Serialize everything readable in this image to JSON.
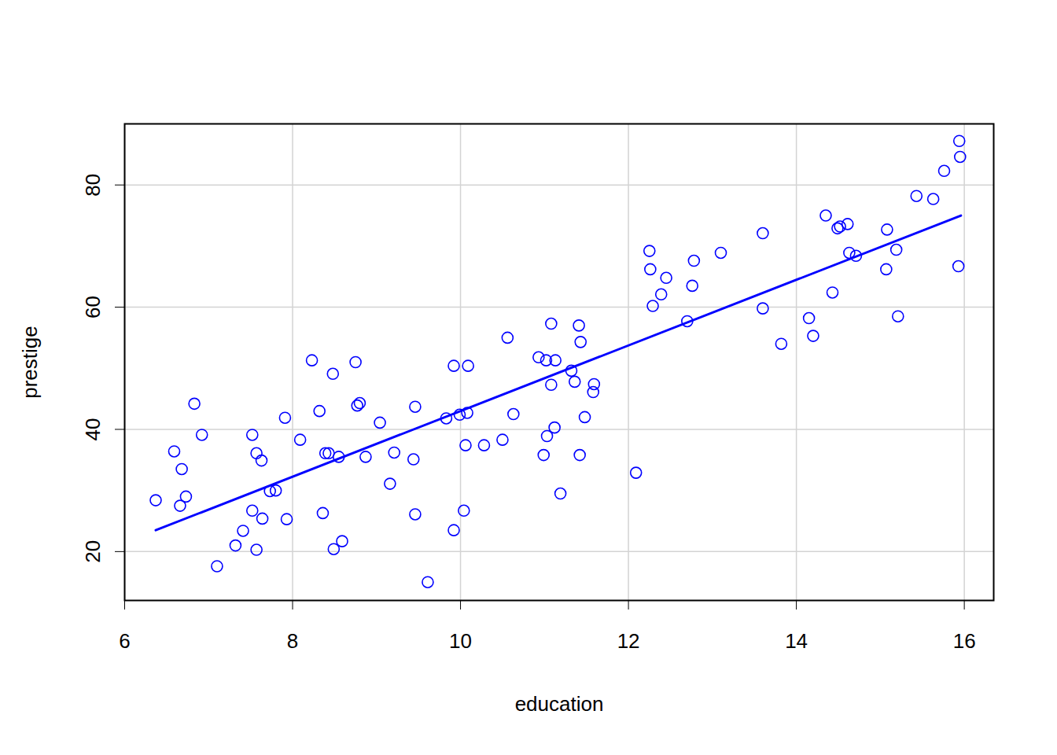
{
  "chart_data": {
    "type": "scatter",
    "x_label": "education",
    "y_label": "prestige",
    "xlim": [
      6,
      16.35
    ],
    "ylim": [
      12,
      90
    ],
    "xticks": [
      6,
      8,
      10,
      12,
      14,
      16
    ],
    "yticks": [
      20,
      40,
      60,
      80
    ],
    "grid": true,
    "series": [
      {
        "type": "scatter",
        "color": "blue",
        "marker": "circle",
        "x": [
          6.37,
          6.59,
          6.66,
          6.68,
          6.73,
          6.83,
          6.92,
          7.1,
          7.32,
          7.41,
          7.52,
          7.52,
          7.57,
          7.57,
          7.63,
          7.64,
          7.73,
          7.8,
          7.91,
          7.93,
          8.09,
          8.23,
          8.32,
          8.36,
          8.39,
          8.43,
          8.48,
          8.49,
          8.55,
          8.59,
          8.75,
          8.77,
          8.8,
          8.87,
          9.04,
          9.16,
          9.21,
          9.44,
          9.46,
          9.46,
          9.61,
          9.83,
          9.92,
          9.92,
          9.99,
          10.04,
          10.06,
          10.08,
          10.09,
          10.28,
          10.5,
          10.56,
          10.63,
          10.93,
          10.99,
          11.02,
          11.03,
          11.08,
          11.08,
          11.12,
          11.13,
          11.19,
          11.32,
          11.36,
          11.41,
          11.42,
          11.43,
          11.48,
          11.58,
          11.59,
          12.09,
          12.25,
          12.26,
          12.29,
          12.39,
          12.45,
          12.7,
          12.76,
          12.78,
          13.1,
          13.6,
          13.6,
          13.82,
          14.15,
          14.2,
          14.35,
          14.43,
          14.49,
          14.52,
          14.61,
          14.63,
          14.71,
          15.07,
          15.08,
          15.19,
          15.21,
          15.43,
          15.63,
          15.76,
          15.93,
          15.94,
          15.95
        ],
        "values": [
          28.4,
          36.4,
          27.5,
          33.5,
          29.0,
          44.2,
          39.1,
          17.6,
          21.0,
          23.4,
          39.1,
          26.7,
          36.1,
          20.3,
          34.9,
          25.4,
          29.9,
          30.0,
          41.9,
          25.3,
          38.3,
          51.3,
          43.0,
          26.3,
          36.1,
          36.1,
          49.1,
          20.4,
          35.5,
          21.7,
          51.0,
          43.9,
          44.3,
          35.5,
          41.1,
          31.1,
          36.2,
          35.1,
          26.1,
          43.7,
          15.0,
          41.8,
          50.4,
          23.5,
          42.4,
          26.7,
          37.4,
          42.7,
          50.4,
          37.4,
          38.3,
          55.0,
          42.5,
          51.8,
          35.8,
          51.3,
          38.9,
          57.3,
          47.3,
          40.3,
          51.3,
          29.5,
          49.6,
          47.8,
          57.0,
          35.8,
          54.3,
          42.0,
          46.1,
          47.4,
          32.9,
          69.2,
          66.2,
          60.2,
          62.1,
          64.8,
          57.7,
          63.5,
          67.6,
          68.9,
          72.1,
          59.8,
          54.0,
          58.2,
          55.3,
          75.0,
          62.4,
          72.9,
          73.2,
          73.6,
          68.9,
          68.4,
          66.2,
          72.7,
          69.4,
          58.5,
          78.2,
          77.7,
          82.3,
          66.7,
          87.2,
          84.6
        ]
      },
      {
        "type": "line",
        "color": "blue",
        "line_style": "solid",
        "x": [
          6.37,
          15.96
        ],
        "values": [
          23.5,
          75.0
        ]
      }
    ]
  }
}
